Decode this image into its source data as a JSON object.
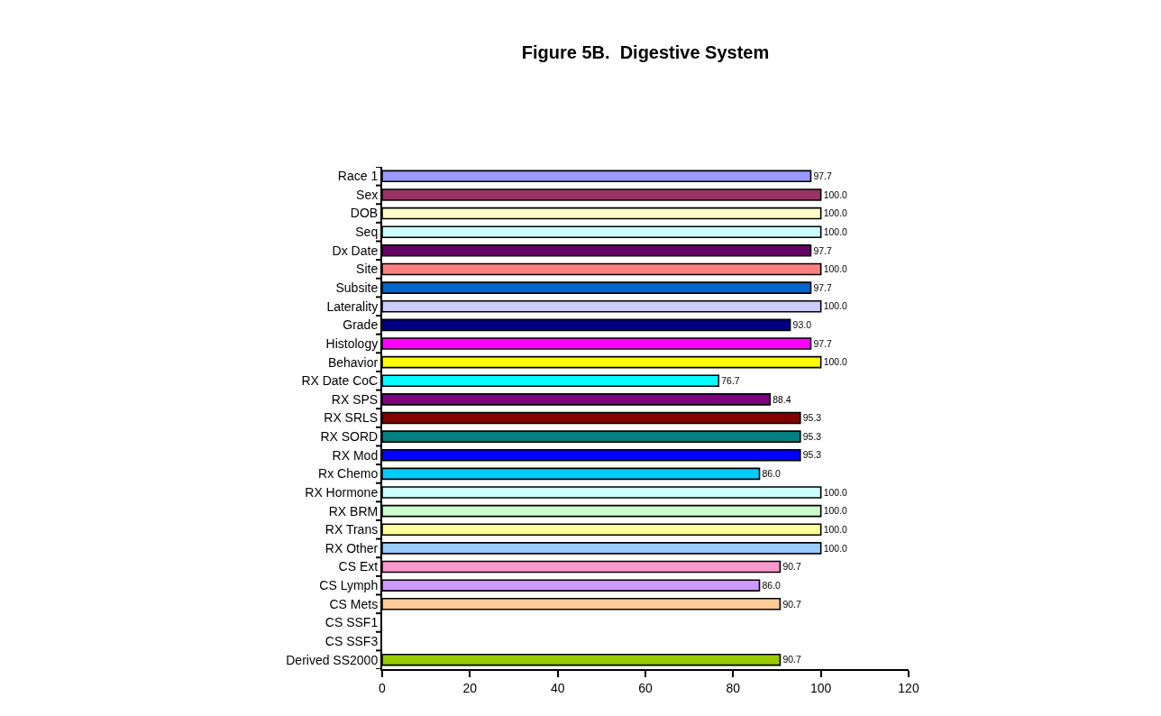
{
  "chart_data": {
    "type": "bar",
    "orientation": "horizontal",
    "title": "Figure 5B.  Digestive System",
    "categories": [
      "Race 1",
      "Sex",
      "DOB",
      "Seq",
      "Dx Date",
      "Site",
      "Subsite",
      "Laterality",
      "Grade",
      "Histology",
      "Behavior",
      "RX Date CoC",
      "RX SPS",
      "RX SRLS",
      "RX SORD",
      "RX Mod",
      "Rx Chemo",
      "RX Hormone",
      "RX BRM",
      "RX Trans",
      "RX Other",
      "CS Ext",
      "CS Lymph",
      "CS Mets",
      "CS SSF1",
      "CS SSF3",
      "Derived SS2000"
    ],
    "values": [
      97.7,
      100.0,
      100.0,
      100.0,
      97.7,
      100.0,
      97.7,
      100.0,
      93.0,
      97.7,
      100.0,
      76.7,
      88.4,
      95.3,
      95.3,
      95.3,
      86.0,
      100.0,
      100.0,
      100.0,
      100.0,
      90.7,
      86.0,
      90.7,
      null,
      null,
      90.7
    ],
    "value_labels": [
      "97.7",
      "100.0",
      "100.0",
      "100.0",
      "97.7",
      "100.0",
      "97.7",
      "100.0",
      "93.0",
      "97.7",
      "100.0",
      "76.7",
      "88.4",
      "95.3",
      "95.3",
      "95.3",
      "86.0",
      "100.0",
      "100.0",
      "100.0",
      "100.0",
      "90.7",
      "86.0",
      "90.7",
      null,
      null,
      "90.7"
    ],
    "colors": [
      "#9999ff",
      "#993366",
      "#ffffcc",
      "#ccffff",
      "#660066",
      "#ff8080",
      "#0066cc",
      "#ccccff",
      "#000080",
      "#ff00ff",
      "#ffff00",
      "#00ffff",
      "#800080",
      "#800000",
      "#008080",
      "#0000ff",
      "#00ccff",
      "#ccffff",
      "#ccffcc",
      "#ffff99",
      "#99ccff",
      "#ff99cc",
      "#cc99ff",
      "#ffcc99",
      null,
      null,
      "#99cc00"
    ],
    "xlim": [
      0,
      120
    ],
    "xticks": [
      0,
      20,
      40,
      60,
      80,
      100,
      120
    ],
    "grid": false,
    "legend": false
  }
}
